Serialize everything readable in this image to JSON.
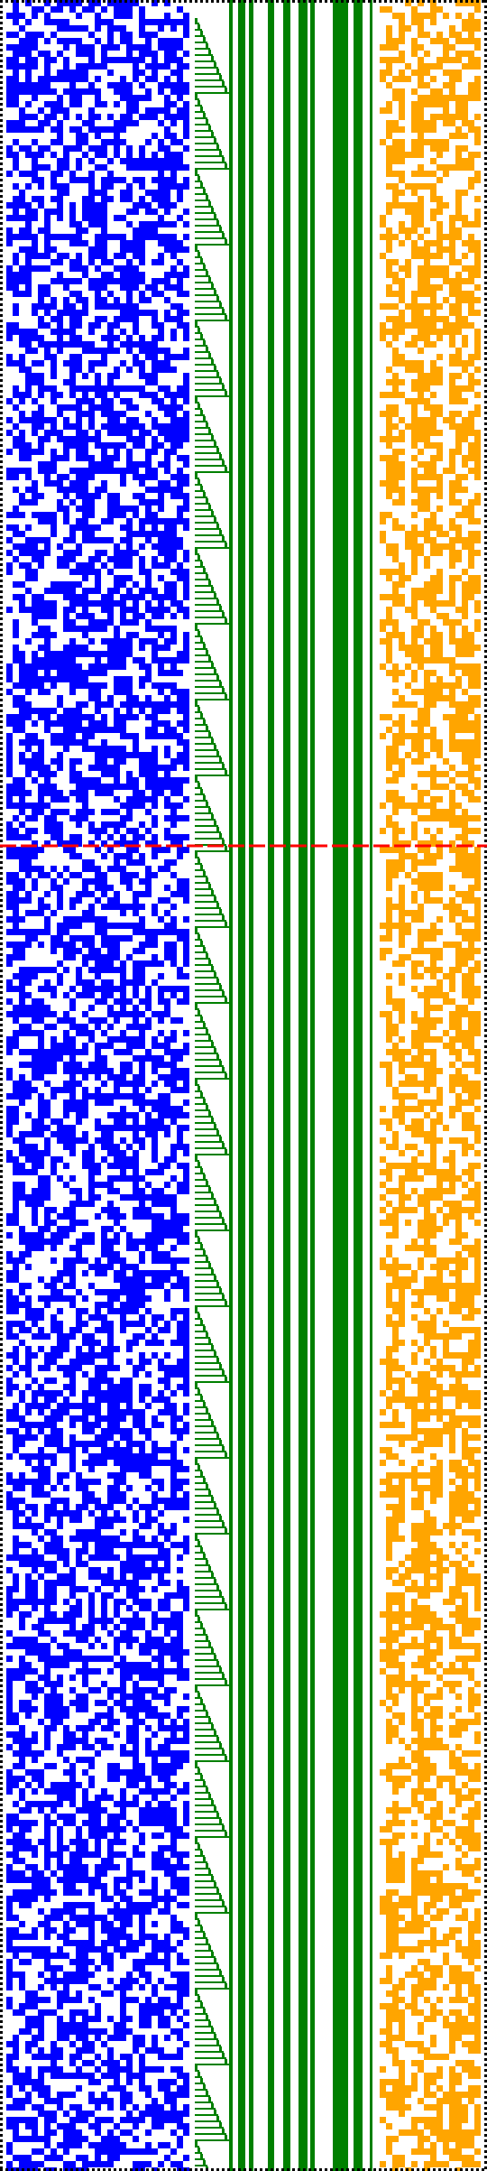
{
  "colors": {
    "background": "#ffffff",
    "border": "#000000",
    "left_pattern": "#0000ff",
    "middle_bars": "#008000",
    "right_pattern": "#ffa500",
    "divider": "#ff0000"
  },
  "sections": {
    "left": "blue-pixel-noise",
    "middle": "green-stepped-bars",
    "right": "orange-pixel-noise"
  }
}
